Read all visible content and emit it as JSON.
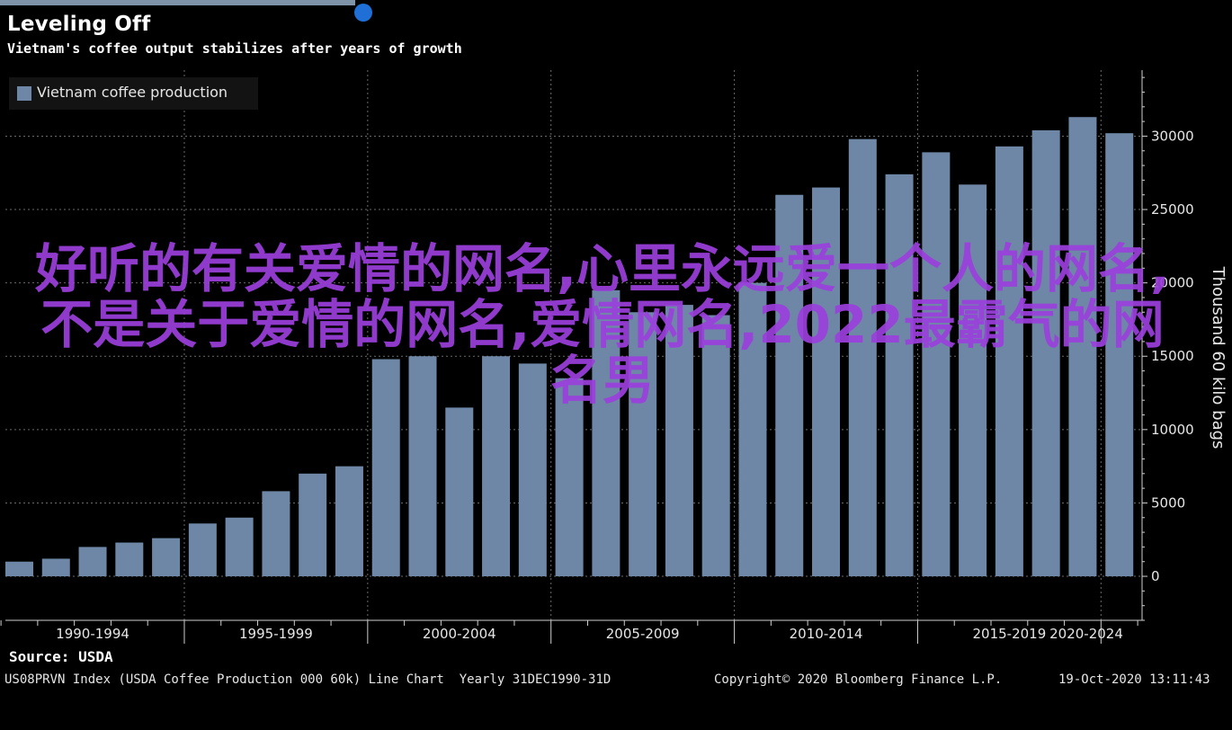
{
  "header": {
    "title": "Leveling Off",
    "subtitle": "Vietnam's coffee output stabilizes after years of growth"
  },
  "overlay_text": "好听的有关爱情的网名,心里永远爱一个人的网名,不是关于爱情的网名,爱情网名,2022最霸气的网名男",
  "footer": {
    "source": "Source: USDA",
    "index": "US08PRVN Index (USDA Coffee Production 000 60k) Line Chart  Yearly 31DEC1990-31D",
    "copyright": "Copyright© 2020 Bloomberg Finance L.P.",
    "timestamp": "19-Oct-2020 13:11:43"
  },
  "colors": {
    "bar": "#6e87a6",
    "background": "#000000",
    "overlay": "#9b3fdc",
    "grid": "#6a6a6a"
  },
  "chart_data": {
    "type": "bar",
    "title": "Leveling Off",
    "subtitle": "Vietnam's coffee output stabilizes after years of growth",
    "ylabel": "Thousand 60 kilo bags",
    "series": [
      {
        "name": "Vietnam coffee production",
        "x": [
          1990,
          1991,
          1992,
          1993,
          1994,
          1995,
          1996,
          1997,
          1998,
          1999,
          2000,
          2001,
          2002,
          2003,
          2004,
          2005,
          2006,
          2007,
          2008,
          2009,
          2010,
          2011,
          2012,
          2013,
          2014,
          2015,
          2016,
          2017,
          2018,
          2019,
          2020
        ],
        "values": [
          1000,
          1200,
          2000,
          2300,
          2600,
          3600,
          4000,
          5800,
          7000,
          7500,
          14800,
          15000,
          11500,
          15000,
          14500,
          13500,
          19500,
          18000,
          18500,
          17800,
          20000,
          26000,
          26500,
          29800,
          27400,
          28900,
          26700,
          29300,
          30400,
          31300,
          30200
        ]
      }
    ],
    "x_tick_labels": [
      "1990-1994",
      "1995-1999",
      "2000-2004",
      "2005-2009",
      "2010-2014",
      "2015-2019",
      "2020-2024"
    ],
    "y_ticks": [
      0,
      5000,
      10000,
      15000,
      20000,
      25000,
      30000
    ],
    "ylim": [
      -3000,
      34500
    ],
    "legend": "top-left",
    "grid": true,
    "y_axis_side": "right"
  }
}
